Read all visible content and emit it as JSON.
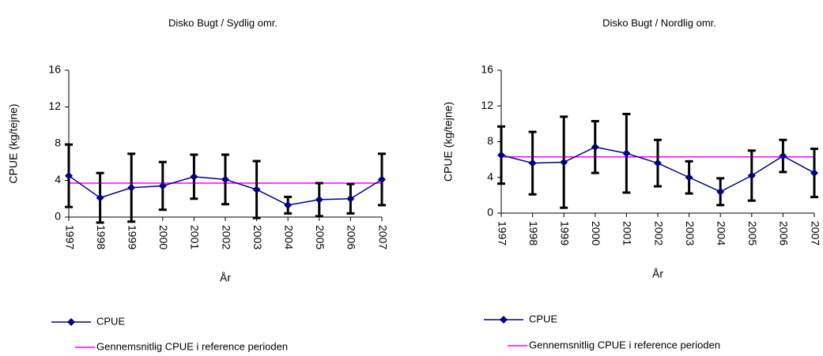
{
  "chart_data": [
    {
      "type": "line",
      "title": "Disko Bugt / Sydlig omr.",
      "x_label": "År",
      "y_label": "CPUE (kg/tejne)",
      "categories": [
        "1997",
        "1998",
        "1999",
        "2000",
        "2001",
        "2002",
        "2003",
        "2004",
        "2005",
        "2006",
        "2007"
      ],
      "series": [
        {
          "name": "CPUE",
          "color": "#000080",
          "values": [
            4.5,
            2.1,
            3.2,
            3.4,
            4.4,
            4.1,
            3.0,
            1.3,
            1.9,
            2.0,
            4.1
          ],
          "errors": [
            3.4,
            2.7,
            3.7,
            2.6,
            2.4,
            2.7,
            3.1,
            0.9,
            1.8,
            1.6,
            2.8
          ]
        }
      ],
      "reference": {
        "name": "Gennemsnitlig CPUE i reference perioden",
        "color": "#ff00ff",
        "value": 3.7
      },
      "ylim": [
        0,
        16
      ],
      "yticks": [
        0,
        4,
        8,
        12,
        16
      ]
    },
    {
      "type": "line",
      "title": "Disko Bugt / Nordlig omr.",
      "x_label": "År",
      "y_label": "CPUE (kg/tejne)",
      "categories": [
        "1997",
        "1998",
        "1999",
        "2000",
        "2001",
        "2002",
        "2003",
        "2004",
        "2005",
        "2006",
        "2007"
      ],
      "series": [
        {
          "name": "CPUE",
          "color": "#000080",
          "values": [
            6.5,
            5.6,
            5.7,
            7.4,
            6.7,
            5.6,
            4.0,
            2.4,
            4.2,
            6.4,
            4.5
          ],
          "errors": [
            3.2,
            3.5,
            5.1,
            2.9,
            4.4,
            2.6,
            1.8,
            1.5,
            2.8,
            1.8,
            2.7
          ]
        }
      ],
      "reference": {
        "name": "Gennemsnitlig CPUE i reference perioden",
        "color": "#ff00ff",
        "value": 6.3
      },
      "ylim": [
        0,
        16
      ],
      "yticks": [
        0,
        4,
        8,
        12,
        16
      ]
    }
  ]
}
